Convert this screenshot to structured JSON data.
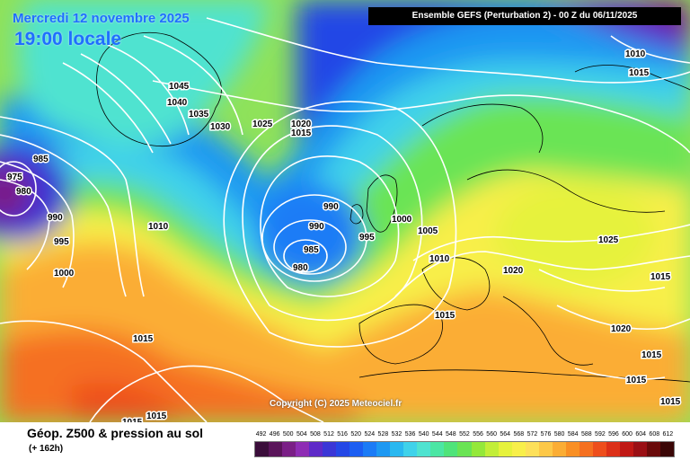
{
  "header": {
    "date_line": "Mercredi 12 novembre 2025",
    "time_line": "19:00 locale",
    "run_info": "Ensemble GEFS  (Perturbation 2)  -  00 Z du 06/11/2025"
  },
  "copyright": "Copyright (C) 2025 Meteociel.fr",
  "legend": {
    "title": "Géop. Z500 & pression au sol",
    "subtitle": "(+ 162h)",
    "scale_values": [
      "492",
      "496",
      "500",
      "504",
      "508",
      "512",
      "516",
      "520",
      "524",
      "528",
      "532",
      "536",
      "540",
      "544",
      "548",
      "552",
      "556",
      "560",
      "564",
      "568",
      "572",
      "576",
      "580",
      "584",
      "588",
      "592",
      "596",
      "600",
      "604",
      "608",
      "612"
    ],
    "scale_colors": [
      "#3a0d3a",
      "#5a145a",
      "#7a1f86",
      "#8e2db4",
      "#5e2ac8",
      "#3a36d6",
      "#2447e6",
      "#1c5ef2",
      "#1b7bf6",
      "#1d98f2",
      "#2ab8f0",
      "#3fd2ea",
      "#4fe3d0",
      "#4be6a4",
      "#4fe47a",
      "#6ae454",
      "#94e83a",
      "#c2ee38",
      "#e6f23c",
      "#f8ef4a",
      "#fde05a",
      "#fdc848",
      "#fbad34",
      "#f98f24",
      "#f57020",
      "#ee4e1c",
      "#dc3018",
      "#c01814",
      "#9a0f14",
      "#6a0a0a",
      "#3a0606"
    ],
    "colors": {
      "copyright_text": "#ffffff",
      "header_text": "#1f6fff",
      "banner_bg": "#000000",
      "isobar": "#ffffff"
    }
  },
  "isobar_labels": [
    {
      "text": "975"
    },
    {
      "text": "980"
    },
    {
      "text": "985"
    },
    {
      "text": "990"
    },
    {
      "text": "995"
    },
    {
      "text": "1000"
    },
    {
      "text": "1010"
    },
    {
      "text": "1015"
    },
    {
      "text": "1045"
    },
    {
      "text": "1040"
    },
    {
      "text": "1035"
    },
    {
      "text": "1030"
    },
    {
      "text": "1025"
    },
    {
      "text": "1020"
    },
    {
      "text": "1015"
    },
    {
      "text": "990"
    },
    {
      "text": "990"
    },
    {
      "text": "985"
    },
    {
      "text": "980"
    },
    {
      "text": "995"
    },
    {
      "text": "1000"
    },
    {
      "text": "1005"
    },
    {
      "text": "1010"
    },
    {
      "text": "1015"
    },
    {
      "text": "1020"
    },
    {
      "text": "1025"
    },
    {
      "text": "1015"
    },
    {
      "text": "1020"
    },
    {
      "text": "1015"
    },
    {
      "text": "1015"
    },
    {
      "text": "1010"
    },
    {
      "text": "1015"
    },
    {
      "text": "1015"
    },
    {
      "text": "1015"
    },
    {
      "text": "1015"
    }
  ]
}
